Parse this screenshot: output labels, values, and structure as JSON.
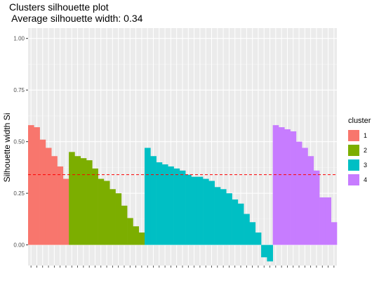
{
  "chart_data": {
    "type": "bar",
    "title": "Clusters silhouette plot",
    "subtitle": " Average silhouette width: 0.34",
    "xlabel": "",
    "ylabel": "Silhouette width Si",
    "ylim": [
      -0.1,
      1.05
    ],
    "yticks": [
      "0.00",
      "0.25",
      "0.50",
      "0.75",
      "1.00"
    ],
    "average_line": 0.34,
    "grid": true,
    "legend": {
      "title": "cluster",
      "position": "right",
      "entries": [
        {
          "label": "1",
          "color": "#F8766D"
        },
        {
          "label": "2",
          "color": "#7CAE00"
        },
        {
          "label": "3",
          "color": "#00BFC4"
        },
        {
          "label": "4",
          "color": "#C77CFF"
        }
      ]
    },
    "series": [
      {
        "name": "1",
        "values": [
          0.58,
          0.57,
          0.51,
          0.47,
          0.43,
          0.38,
          0.32
        ]
      },
      {
        "name": "2",
        "values": [
          0.45,
          0.43,
          0.42,
          0.41,
          0.37,
          0.32,
          0.31,
          0.27,
          0.25,
          0.19,
          0.13,
          0.09,
          0.06
        ]
      },
      {
        "name": "3",
        "values": [
          0.47,
          0.43,
          0.4,
          0.39,
          0.38,
          0.37,
          0.36,
          0.34,
          0.33,
          0.33,
          0.32,
          0.31,
          0.28,
          0.27,
          0.25,
          0.22,
          0.2,
          0.15,
          0.11,
          0.06,
          -0.06,
          -0.08
        ]
      },
      {
        "name": "4",
        "values": [
          0.58,
          0.57,
          0.56,
          0.55,
          0.5,
          0.47,
          0.43,
          0.36,
          0.23,
          0.23,
          0.11
        ]
      }
    ]
  }
}
